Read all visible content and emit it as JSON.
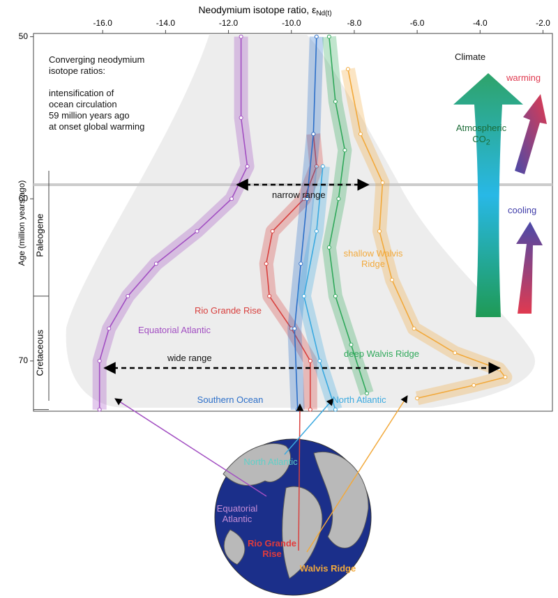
{
  "chart_data": {
    "type": "line",
    "x_label": "Neodymium isotope ratio, ε",
    "x_label_subscript": "Nd(t)",
    "y_label": "Age (million years ago)",
    "xlim": [
      -18.2,
      -1.7
    ],
    "ylim": [
      49.8,
      73.1
    ],
    "y_inverted": true,
    "x_axis_position": "top",
    "xticks": [
      {
        "value": -16,
        "label": "-16.0"
      },
      {
        "value": -14,
        "label": "-14.0"
      },
      {
        "value": -12,
        "label": "-12.0"
      },
      {
        "value": -10,
        "label": "-10.0"
      },
      {
        "value": -8,
        "label": "-8.0"
      },
      {
        "value": -6,
        "label": "-6.0"
      },
      {
        "value": -4,
        "label": "-4.0"
      },
      {
        "value": -2,
        "label": "-2.0"
      }
    ],
    "yticks": [
      50,
      60,
      70
    ],
    "periods": [
      {
        "name": "Paleogene",
        "range": [
          58.5,
          66
        ]
      },
      {
        "name": "Cretaceous",
        "range": [
          66,
          73
        ]
      }
    ],
    "series": [
      {
        "name": "Equatorial Atlantic",
        "color": "#a24fc2",
        "x": [
          -11.6,
          -11.6,
          -11.4,
          -11.9,
          -13.0,
          -14.3,
          -15.2,
          -15.8,
          -16.1,
          -16.1
        ],
        "y": [
          50,
          55,
          58,
          60,
          62,
          64,
          66,
          68,
          70,
          73
        ]
      },
      {
        "name": "Rio Grande Rise",
        "color": "#d8413f",
        "x": [
          -9.3,
          -9.2,
          -9.6,
          -10.6,
          -10.8,
          -10.7,
          -10.0,
          -9.4,
          -9.4
        ],
        "y": [
          56,
          58,
          60,
          62,
          64,
          66,
          68,
          70,
          73
        ]
      },
      {
        "name": "Southern Ocean",
        "color": "#2c6fc9",
        "x": [
          -9.2,
          -9.3,
          -9.5,
          -9.7,
          -9.9,
          -9.8
        ],
        "y": [
          50,
          56,
          60,
          64,
          68,
          73
        ]
      },
      {
        "name": "North Atlantic",
        "color": "#3aa9e0",
        "x": [
          -9.0,
          -9.2,
          -9.6,
          -9.1,
          -8.6
        ],
        "y": [
          58,
          62,
          66,
          70,
          73
        ]
      },
      {
        "name": "deep Walvis Ridge",
        "color": "#2fa85a",
        "x": [
          -8.8,
          -8.6,
          -8.3,
          -8.5,
          -8.8,
          -8.6,
          -8.1,
          -7.6
        ],
        "y": [
          50,
          54,
          57,
          60,
          63,
          66,
          69,
          72
        ]
      },
      {
        "name": "shallow Walvis Ridge",
        "color": "#f2a93b",
        "x": [
          -8.2,
          -7.8,
          -7.1,
          -7.2,
          -6.8,
          -6.1,
          -4.8,
          -3.4,
          -3.2,
          -4.2,
          -6.0
        ],
        "y": [
          52,
          56,
          59,
          62,
          65,
          68,
          69.5,
          70.5,
          71,
          71.5,
          72.3
        ]
      }
    ],
    "annotations": {
      "text_lines": [
        "Converging neodymium",
        "isotope ratios:",
        "intensification of",
        "ocean circulation",
        "59 million years ago",
        "at onset global warming"
      ],
      "narrow": "narrow range",
      "wide": "wide range",
      "climate": "Climate",
      "co2": "Atmospheric CO",
      "co2_subscript": "2",
      "warming": "warming",
      "cooling": "cooling"
    },
    "map_labels": {
      "north_atlantic": "North Atlantic",
      "equatorial_atlantic": "Equatorial Atlantic",
      "rio_grande_rise": "Rio Grande Rise",
      "walvis_ridge": "Walvis Ridge"
    }
  }
}
